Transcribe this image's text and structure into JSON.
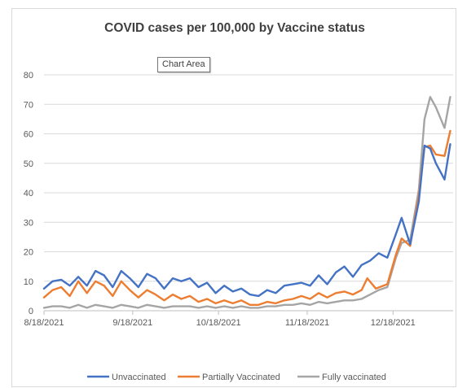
{
  "tooltip": "Chart Area",
  "chart_data": {
    "type": "line",
    "title": "COVID cases per 100,000 by Vaccine status",
    "xlabel": "",
    "ylabel": "",
    "ylim": [
      0,
      80
    ],
    "yticks": [
      0,
      10,
      20,
      30,
      40,
      50,
      60,
      70,
      80
    ],
    "xlim": [
      "8/18/2021",
      "1/8/2022"
    ],
    "xticks": [
      "8/18/2021",
      "9/18/2021",
      "10/18/2021",
      "11/18/2021",
      "12/18/2021"
    ],
    "grid": "horizontal",
    "legend_position": "bottom",
    "colors": {
      "Unvaccinated": "#4472c4",
      "Partially Vaccinated": "#ed7d31",
      "Fully vaccinated": "#a5a5a5"
    },
    "series": [
      {
        "name": "Unvaccinated",
        "points": [
          [
            "8/18/2021",
            7.5
          ],
          [
            "8/21/2021",
            10
          ],
          [
            "8/24/2021",
            10.5
          ],
          [
            "8/27/2021",
            8.5
          ],
          [
            "8/30/2021",
            11.5
          ],
          [
            "9/2/2021",
            8.5
          ],
          [
            "9/5/2021",
            13.5
          ],
          [
            "9/8/2021",
            12
          ],
          [
            "9/11/2021",
            8
          ],
          [
            "9/14/2021",
            13.5
          ],
          [
            "9/17/2021",
            11
          ],
          [
            "9/20/2021",
            8
          ],
          [
            "9/23/2021",
            12.5
          ],
          [
            "9/26/2021",
            11
          ],
          [
            "9/29/2021",
            7.5
          ],
          [
            "10/2/2021",
            11
          ],
          [
            "10/5/2021",
            10
          ],
          [
            "10/8/2021",
            11
          ],
          [
            "10/11/2021",
            8
          ],
          [
            "10/14/2021",
            9.5
          ],
          [
            "10/17/2021",
            6
          ],
          [
            "10/20/2021",
            8.5
          ],
          [
            "10/23/2021",
            6.5
          ],
          [
            "10/26/2021",
            7.5
          ],
          [
            "10/29/2021",
            5.5
          ],
          [
            "11/1/2021",
            5
          ],
          [
            "11/4/2021",
            7
          ],
          [
            "11/7/2021",
            6
          ],
          [
            "11/10/2021",
            8.5
          ],
          [
            "11/13/2021",
            9
          ],
          [
            "11/16/2021",
            9.5
          ],
          [
            "11/19/2021",
            8.5
          ],
          [
            "11/22/2021",
            12
          ],
          [
            "11/25/2021",
            9
          ],
          [
            "11/28/2021",
            13
          ],
          [
            "12/1/2021",
            15
          ],
          [
            "12/4/2021",
            11.5
          ],
          [
            "12/7/2021",
            15.5
          ],
          [
            "12/10/2021",
            17
          ],
          [
            "12/13/2021",
            19.5
          ],
          [
            "12/16/2021",
            18
          ],
          [
            "12/19/2021",
            26
          ],
          [
            "12/21/2021",
            31.5
          ],
          [
            "12/24/2021",
            22.5
          ],
          [
            "12/27/2021",
            37
          ],
          [
            "12/29/2021",
            56
          ],
          [
            "12/31/2021",
            55
          ],
          [
            "1/2/2022",
            50
          ],
          [
            "1/5/2022",
            44.5
          ],
          [
            "1/7/2022",
            56.5
          ]
        ]
      },
      {
        "name": "Partially Vaccinated",
        "points": [
          [
            "8/18/2021",
            4.5
          ],
          [
            "8/21/2021",
            7
          ],
          [
            "8/24/2021",
            8
          ],
          [
            "8/27/2021",
            5
          ],
          [
            "8/30/2021",
            10
          ],
          [
            "9/2/2021",
            6
          ],
          [
            "9/5/2021",
            10
          ],
          [
            "9/8/2021",
            8.5
          ],
          [
            "9/11/2021",
            5
          ],
          [
            "9/14/2021",
            10
          ],
          [
            "9/17/2021",
            7
          ],
          [
            "9/20/2021",
            4.5
          ],
          [
            "9/23/2021",
            7
          ],
          [
            "9/26/2021",
            5.5
          ],
          [
            "9/29/2021",
            3.5
          ],
          [
            "10/2/2021",
            5.5
          ],
          [
            "10/5/2021",
            4
          ],
          [
            "10/8/2021",
            5
          ],
          [
            "10/11/2021",
            3
          ],
          [
            "10/14/2021",
            4
          ],
          [
            "10/17/2021",
            2.5
          ],
          [
            "10/20/2021",
            3.5
          ],
          [
            "10/23/2021",
            2.5
          ],
          [
            "10/26/2021",
            3.5
          ],
          [
            "10/29/2021",
            2
          ],
          [
            "11/1/2021",
            2
          ],
          [
            "11/4/2021",
            3
          ],
          [
            "11/7/2021",
            2.5
          ],
          [
            "11/10/2021",
            3.5
          ],
          [
            "11/13/2021",
            4
          ],
          [
            "11/16/2021",
            5
          ],
          [
            "11/19/2021",
            4
          ],
          [
            "11/22/2021",
            6
          ],
          [
            "11/25/2021",
            4.5
          ],
          [
            "11/28/2021",
            6
          ],
          [
            "12/1/2021",
            6.5
          ],
          [
            "12/4/2021",
            5.5
          ],
          [
            "12/7/2021",
            7
          ],
          [
            "12/9/2021",
            11
          ],
          [
            "12/12/2021",
            7.5
          ],
          [
            "12/16/2021",
            9
          ],
          [
            "12/19/2021",
            19
          ],
          [
            "12/21/2021",
            24.5
          ],
          [
            "12/24/2021",
            22
          ],
          [
            "12/27/2021",
            39
          ],
          [
            "12/29/2021",
            55.5
          ],
          [
            "12/31/2021",
            56
          ],
          [
            "1/2/2022",
            53
          ],
          [
            "1/5/2022",
            52.5
          ],
          [
            "1/7/2022",
            61
          ]
        ]
      },
      {
        "name": "Fully vaccinated",
        "points": [
          [
            "8/18/2021",
            1
          ],
          [
            "8/21/2021",
            1.5
          ],
          [
            "8/24/2021",
            1.5
          ],
          [
            "8/27/2021",
            1
          ],
          [
            "8/30/2021",
            2
          ],
          [
            "9/2/2021",
            1
          ],
          [
            "9/5/2021",
            2
          ],
          [
            "9/8/2021",
            1.5
          ],
          [
            "9/11/2021",
            1
          ],
          [
            "9/14/2021",
            2
          ],
          [
            "9/17/2021",
            1.5
          ],
          [
            "9/20/2021",
            1
          ],
          [
            "9/23/2021",
            2
          ],
          [
            "9/26/2021",
            1.5
          ],
          [
            "9/29/2021",
            1
          ],
          [
            "10/2/2021",
            1.5
          ],
          [
            "10/5/2021",
            1.5
          ],
          [
            "10/8/2021",
            1.5
          ],
          [
            "10/11/2021",
            1
          ],
          [
            "10/14/2021",
            1.5
          ],
          [
            "10/17/2021",
            1
          ],
          [
            "10/20/2021",
            1.5
          ],
          [
            "10/23/2021",
            1
          ],
          [
            "10/26/2021",
            1.5
          ],
          [
            "10/29/2021",
            1
          ],
          [
            "11/1/2021",
            1
          ],
          [
            "11/4/2021",
            1.5
          ],
          [
            "11/7/2021",
            1.5
          ],
          [
            "11/10/2021",
            2
          ],
          [
            "11/13/2021",
            2
          ],
          [
            "11/16/2021",
            2.5
          ],
          [
            "11/19/2021",
            2
          ],
          [
            "11/22/2021",
            3
          ],
          [
            "11/25/2021",
            2.5
          ],
          [
            "11/28/2021",
            3
          ],
          [
            "12/1/2021",
            3.5
          ],
          [
            "12/4/2021",
            3.5
          ],
          [
            "12/7/2021",
            4
          ],
          [
            "12/10/2021",
            5.5
          ],
          [
            "12/13/2021",
            7
          ],
          [
            "12/16/2021",
            8
          ],
          [
            "12/19/2021",
            18
          ],
          [
            "12/21/2021",
            23
          ],
          [
            "12/24/2021",
            24
          ],
          [
            "12/27/2021",
            41
          ],
          [
            "12/29/2021",
            65
          ],
          [
            "12/31/2021",
            72.5
          ],
          [
            "1/2/2022",
            69
          ],
          [
            "1/5/2022",
            62
          ],
          [
            "1/7/2022",
            72.5
          ]
        ]
      }
    ]
  }
}
